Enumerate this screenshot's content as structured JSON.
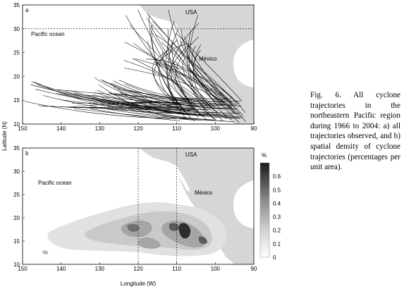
{
  "figure": {
    "caption": "Fig. 6. All cyclone trajectories in the northeastern Pacific region during 1966 to 2004: a) all trajectories observed, and b) spatial density of cyclone trajectories (percentages per unit area).",
    "ylabel": "Latitude (N)",
    "xlabel": "Longitude (W)",
    "xticks": [
      "150",
      "140",
      "130",
      "120",
      "110",
      "100",
      "90"
    ],
    "yticks": [
      "10",
      "15",
      "20",
      "25",
      "30",
      "35"
    ],
    "colors": {
      "land": "#d6d6d6",
      "frame": "#000000",
      "track": "#000000"
    }
  },
  "panel_a": {
    "label": "a",
    "labels": {
      "ocean": "Pacific ocean",
      "usa": "USA",
      "mexico": "México"
    },
    "ref_line_lat": 30
  },
  "panel_b": {
    "label": "b",
    "labels": {
      "ocean": "Pacific ocean",
      "usa": "USA",
      "mexico": "México"
    },
    "ref_lines_lon": [
      120,
      110
    ],
    "colorbar": {
      "unit": "%",
      "ticks": [
        "0",
        "0.1",
        "0.2",
        "0.3",
        "0.4",
        "0.5",
        "0.6"
      ],
      "range": [
        0,
        0.7
      ]
    }
  }
}
